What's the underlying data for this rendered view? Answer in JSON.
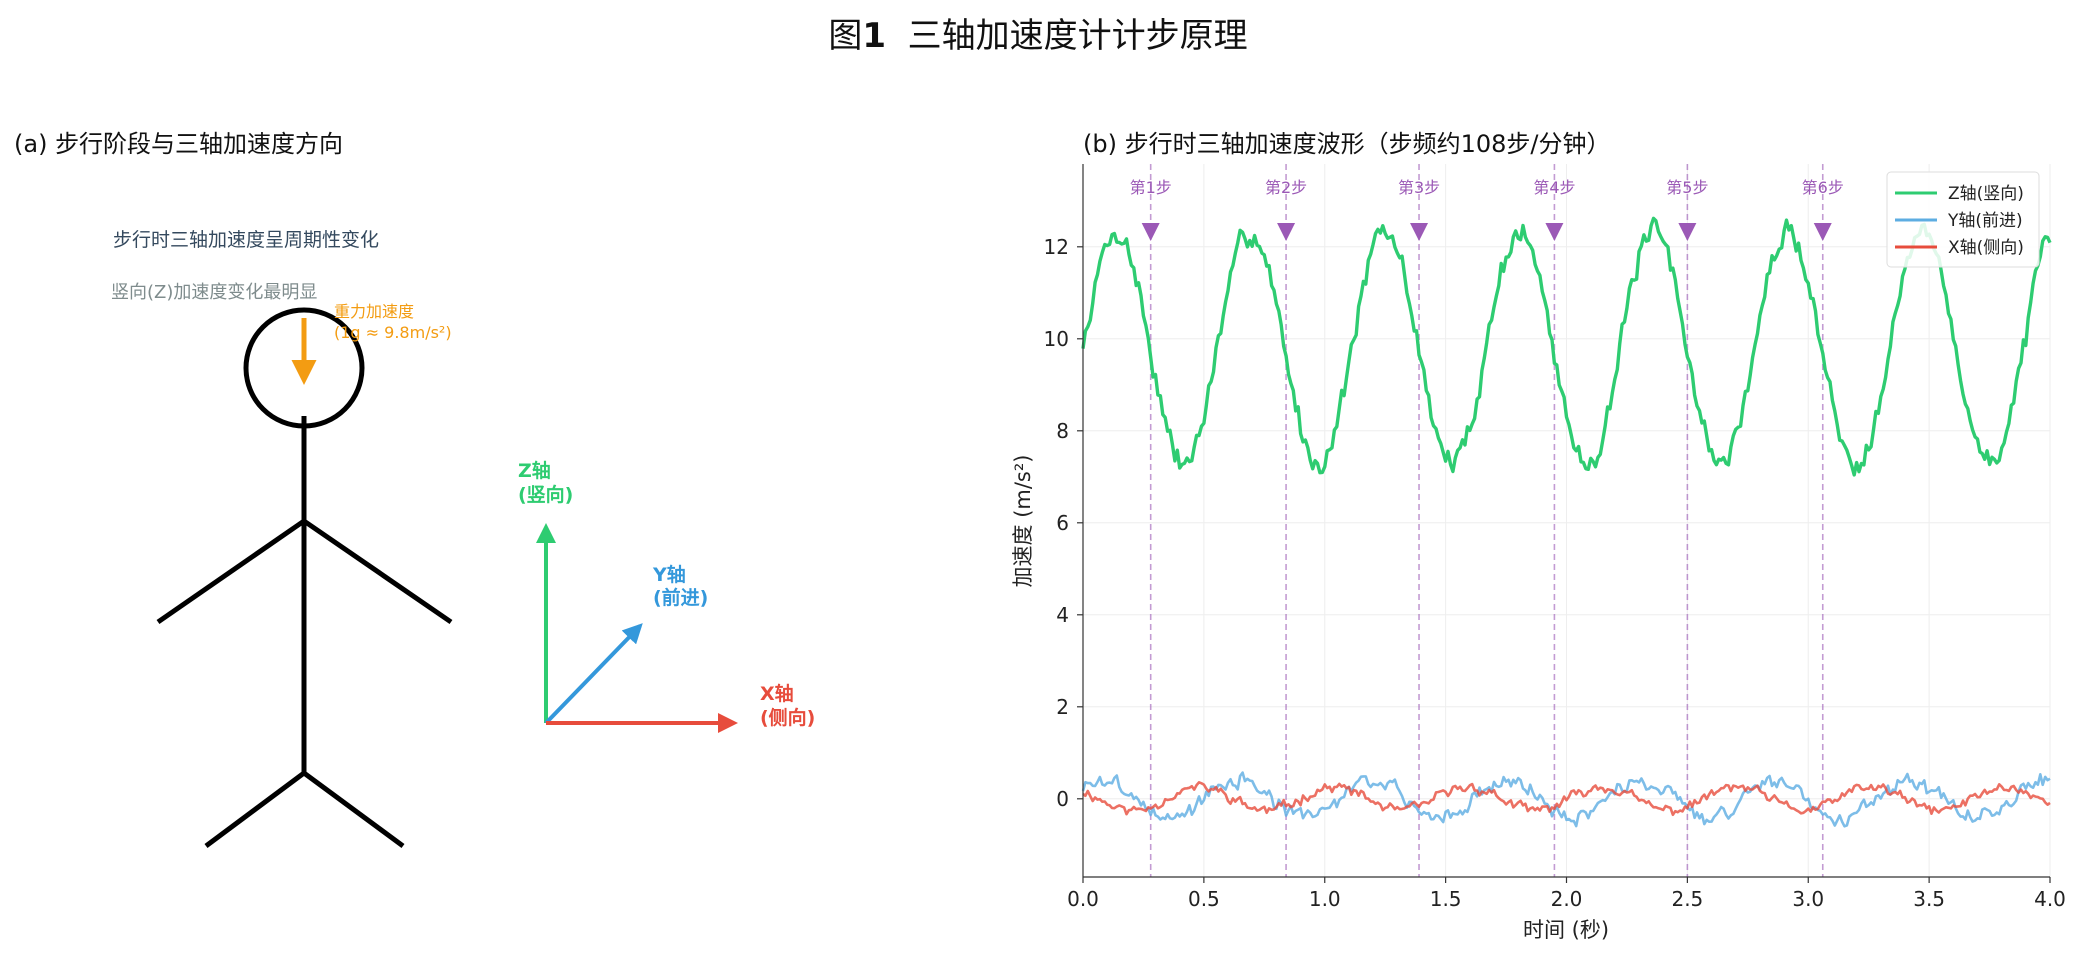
{
  "figure": {
    "title_prefix": "图",
    "title_number": "1",
    "title_text": "三轴加速度计计步原理"
  },
  "panel_a": {
    "title": "(a) 步行阶段与三轴加速度方向",
    "note_periodic": "步行时三轴加速度呈周期性变化",
    "note_vertical": "竖向(Z)加速度变化最明显",
    "gravity_label": "重力加速度",
    "gravity_value": "(1g ≈ 9.8m/s²)",
    "axes": [
      {
        "key": "z",
        "name": "Z轴",
        "desc": "(竖向)",
        "color": "#2ecc71"
      },
      {
        "key": "y",
        "name": "Y轴",
        "desc": "(前进)",
        "color": "#3498db"
      },
      {
        "key": "x",
        "name": "X轴",
        "desc": "(侧向)",
        "color": "#e74c3c"
      }
    ],
    "colors": {
      "figure": "#000000",
      "gravity": "#f39c12"
    }
  },
  "chart_data": {
    "type": "line",
    "title": "(b) 步行时三轴加速度波形（步频约108步/分钟）",
    "xlabel": "时间 (秒)",
    "ylabel": "加速度 (m/s²)",
    "xlim": [
      0,
      4
    ],
    "ylim": [
      -1.7,
      13.8
    ],
    "x_ticks": [
      0.0,
      0.5,
      1.0,
      1.5,
      2.0,
      2.5,
      3.0,
      3.5,
      4.0
    ],
    "x_tick_labels": [
      "0.0",
      "0.5",
      "1.0",
      "1.5",
      "2.0",
      "2.5",
      "3.0",
      "3.5",
      "4.0"
    ],
    "y_ticks": [
      0,
      2,
      4,
      6,
      8,
      10,
      12
    ],
    "y_tick_labels": [
      "0",
      "2",
      "4",
      "6",
      "8",
      "10",
      "12"
    ],
    "grid": true,
    "legend_position": "top-right",
    "step_frequency_hz": 1.8,
    "series": [
      {
        "name": "Z轴(竖向)",
        "color": "#2ecc71",
        "mean": 9.8,
        "amplitude": 2.5,
        "phase": 0,
        "noise": 0.35,
        "seed": 7
      },
      {
        "name": "Y轴(前进)",
        "color": "#5dade2",
        "mean": 0,
        "amplitude": 0.4,
        "phase": 0.6,
        "noise": 0.22,
        "seed": 3
      },
      {
        "name": "X轴(侧向)",
        "color": "#e74c3c",
        "mean": 0,
        "amplitude": 0.25,
        "phase": 2.4,
        "noise": 0.15,
        "seed": 11
      }
    ],
    "step_markers": [
      {
        "label": "第1步",
        "x": 0.28
      },
      {
        "label": "第2步",
        "x": 0.84
      },
      {
        "label": "第3步",
        "x": 1.39
      },
      {
        "label": "第4步",
        "x": 1.95
      },
      {
        "label": "第5步",
        "x": 2.5
      },
      {
        "label": "第6步",
        "x": 3.06
      }
    ],
    "marker_y": 12.3,
    "marker_color": "#9b59b6"
  }
}
